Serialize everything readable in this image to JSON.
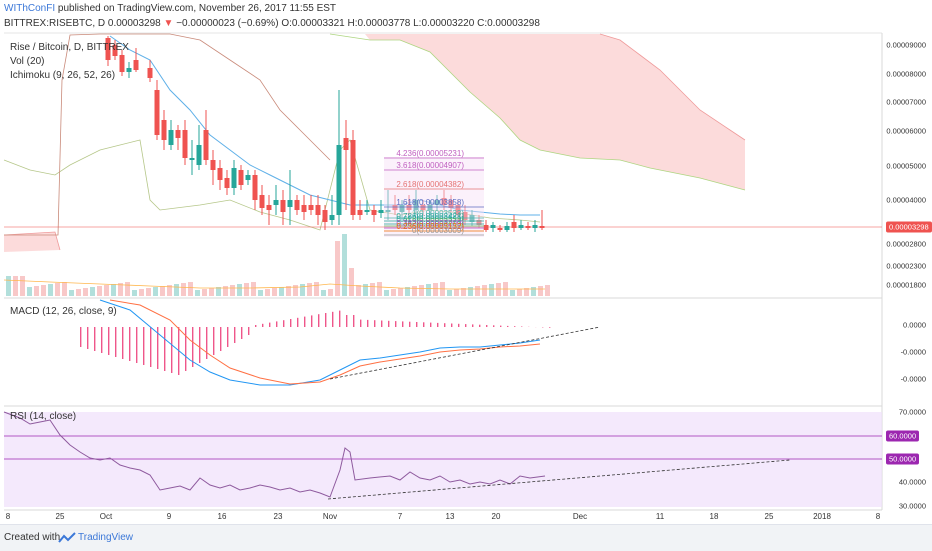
{
  "header": {
    "author": "WIThConFI",
    "published": " published on TradingView.com, November 26, 2017 11:55 EST",
    "symbol": "BITTREX:RISEBTC, D",
    "last": "0.00003298",
    "change": "−0.00000023 (−0.69%)",
    "ohlc": {
      "o": "0.00003321",
      "h": "0.00003778",
      "l": "0.00003220",
      "c": "0.00003298"
    },
    "o_label": "O:",
    "h_label": "H:",
    "l_label": "L:",
    "c_label": "C:"
  },
  "legends": {
    "main": "Rise / Bitcoin, D, BITTREX",
    "vol": "Vol (20)",
    "ichimoku": "Ichimoku (9, 26, 52, 26)",
    "macd": "MACD (12, 26, close, 9)",
    "rsi": "RSI (14, close)"
  },
  "price_axis": [
    "0.00009000",
    "0.00008000",
    "0.00007000",
    "0.00006000",
    "0.00005000",
    "0.00004000",
    "0.00002800",
    "0.00002300",
    "0.00001800"
  ],
  "price_tag": "0.00003298",
  "macd_axis": [
    "0.0000",
    "-0.0000",
    "-0.0000"
  ],
  "rsi_axis": [
    "70.0000",
    "50.0000",
    "40.0000",
    "30.0000"
  ],
  "rsi_tags": {
    "upper": "60.0000",
    "lower": "50.0000"
  },
  "fib_labels": [
    "4.236(0.00005231)",
    "3.618(0.00004907)",
    "2.618(0.00004382)",
    "1.618(0.00003858)",
    "1(0.00003533)",
    "0.786(0.00003421)",
    "0.618(0.00003333)",
    "0.5(0.00003271)",
    "0.382(0.00003209)",
    "0.236(0.00003132)",
    "0(0.00003009)"
  ],
  "x_axis": [
    "8",
    "25",
    "Oct",
    "9",
    "16",
    "23",
    "Nov",
    "7",
    "13",
    "20",
    "Dec",
    "11",
    "18",
    "25",
    "2018",
    "8"
  ],
  "footer": {
    "created": "Created with",
    "brand": "TradingView"
  },
  "colors": {
    "up": "#26a69a",
    "down": "#ef5350",
    "ma": "#5fb0e8",
    "fib": "#c060c0",
    "rsi": "#8e5a9e",
    "cloud": "#fbd5d5"
  }
}
